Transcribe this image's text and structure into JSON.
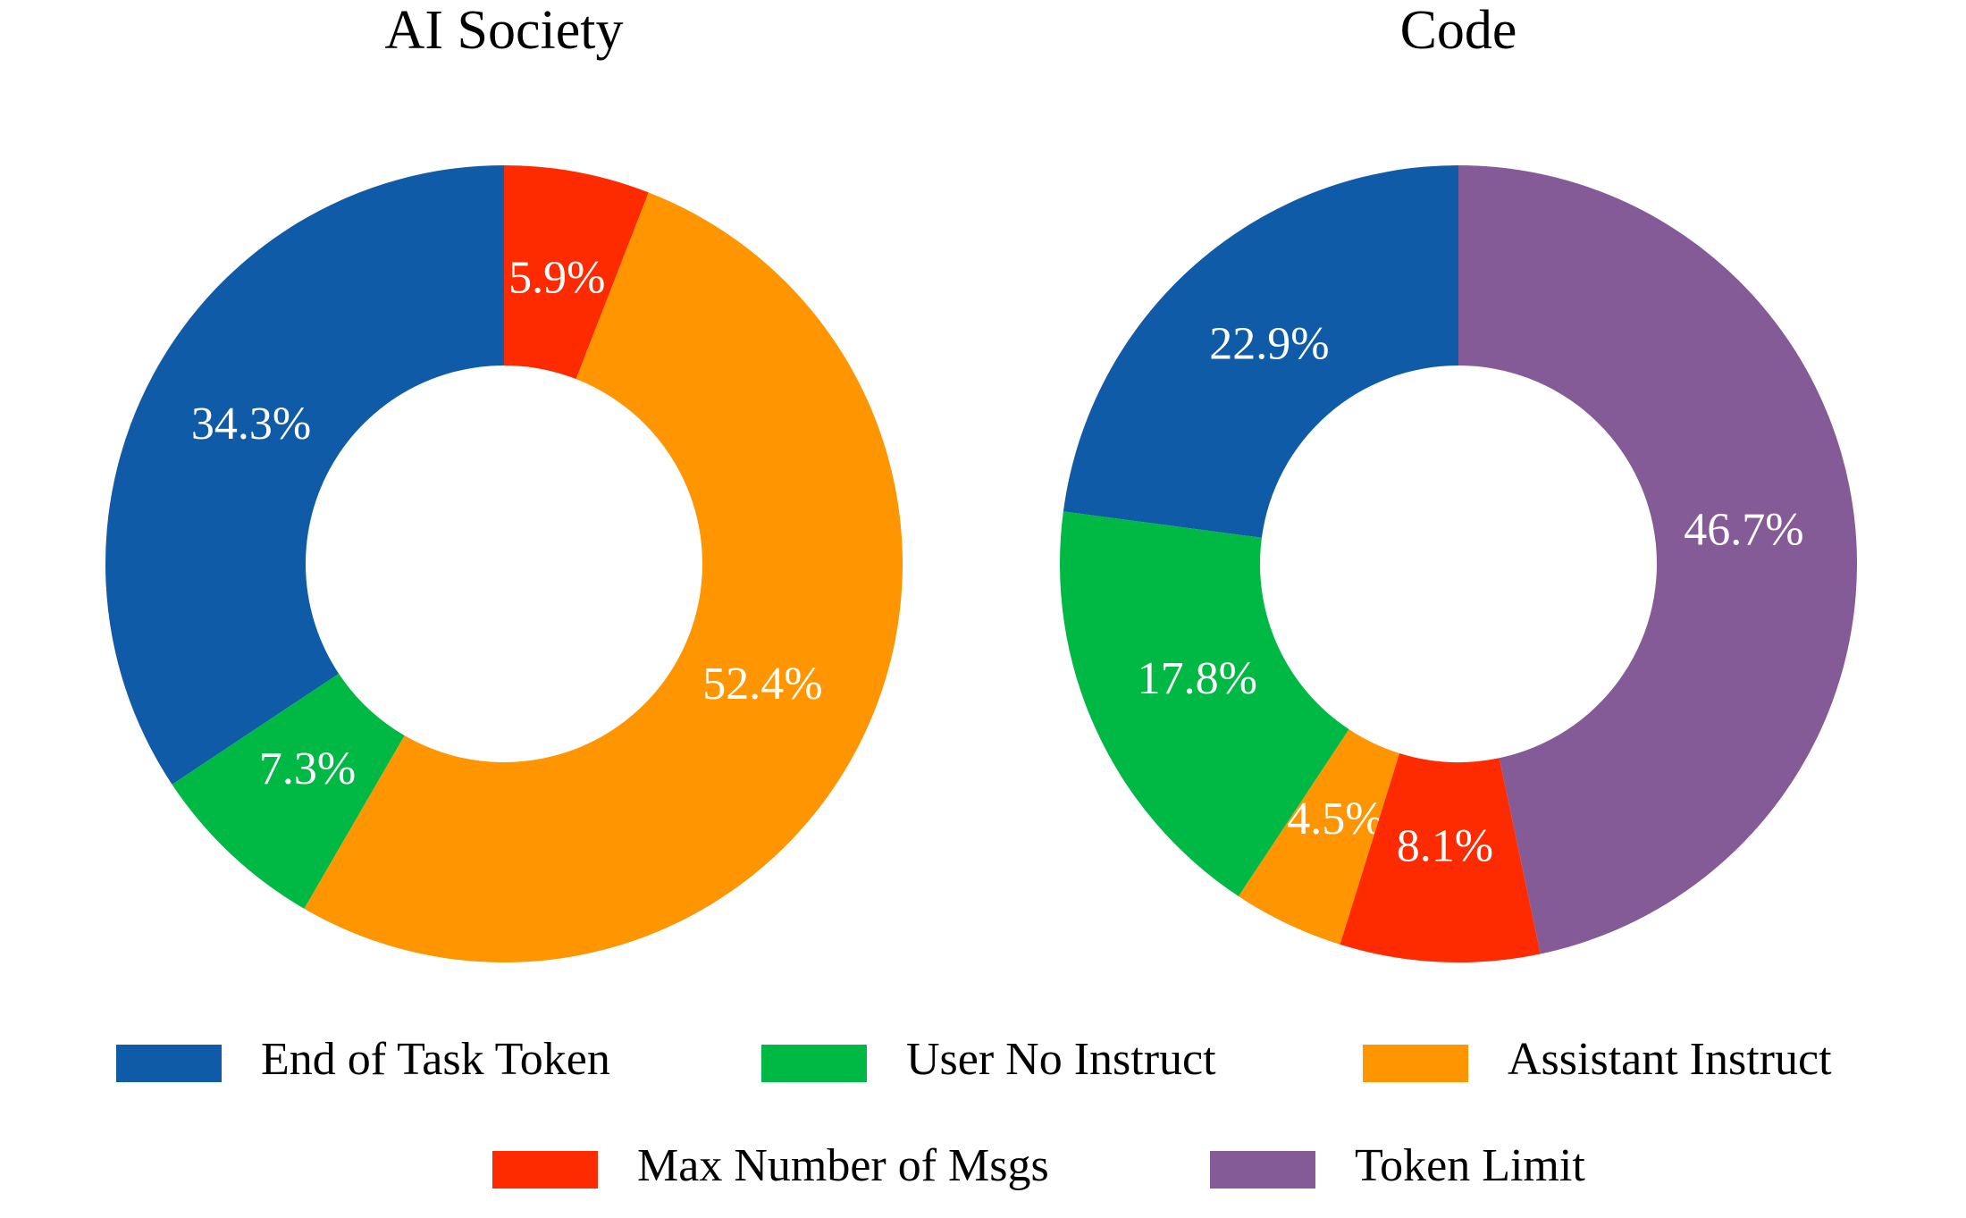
{
  "chart_data": [
    {
      "type": "pie",
      "title": "AI Society",
      "categories": [
        "End of Task Token",
        "User No Instruct",
        "Assistant Instruct",
        "Max Number of Msgs"
      ],
      "values": [
        34.3,
        7.3,
        52.4,
        5.9
      ],
      "value_labels": [
        "34.3%",
        "7.3%",
        "52.4%",
        "5.9%"
      ],
      "colors": [
        "#0f5ba7",
        "#00b844",
        "#ff9500",
        "#ff2b00"
      ]
    },
    {
      "type": "pie",
      "title": "Code",
      "categories": [
        "End of Task Token",
        "User No Instruct",
        "Assistant Instruct",
        "Max Number of Msgs",
        "Token Limit"
      ],
      "values": [
        22.9,
        17.8,
        4.5,
        8.1,
        46.7
      ],
      "value_labels": [
        "22.9%",
        "17.8%",
        "4.5%",
        "8.1%",
        "46.7%"
      ],
      "colors": [
        "#0f5ba7",
        "#00b844",
        "#ff9500",
        "#ff2b00",
        "#845b97"
      ]
    }
  ]
}
